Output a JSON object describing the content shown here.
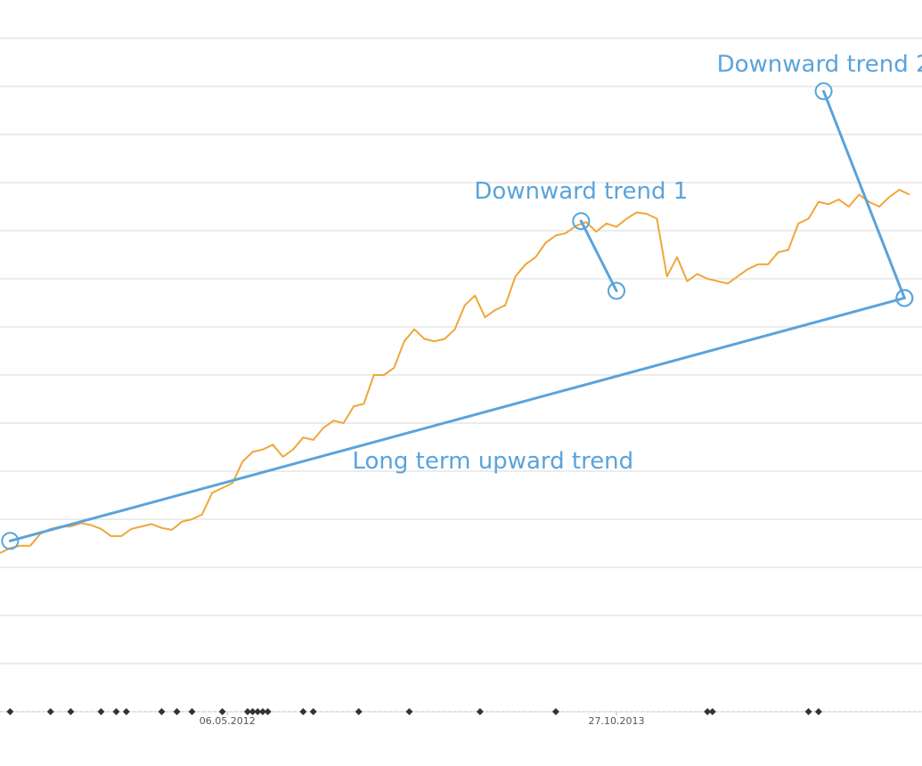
{
  "chart_data": {
    "type": "line",
    "title": "",
    "xlabel": "",
    "ylabel": "",
    "grid": true,
    "legend": "none",
    "x_range": [
      "2011-06-26",
      "2014-12-07"
    ],
    "x_ticks": [
      {
        "date": "2012-05-06",
        "label": "06.05.2012"
      },
      {
        "date": "2013-10-27",
        "label": "27.10.2013"
      }
    ],
    "ylim": [
      0,
      14.5
    ],
    "series": [
      {
        "color": "#f0a63a",
        "points": [
          [
            "2011-06-26",
            3.3
          ],
          [
            "2011-07-10",
            3.4
          ],
          [
            "2011-07-24",
            3.45
          ],
          [
            "2011-08-07",
            3.45
          ],
          [
            "2011-08-21",
            3.7
          ],
          [
            "2011-09-04",
            3.8
          ],
          [
            "2011-09-18",
            3.85
          ],
          [
            "2011-10-02",
            3.85
          ],
          [
            "2011-10-16",
            3.92
          ],
          [
            "2011-10-30",
            3.88
          ],
          [
            "2011-11-13",
            3.8
          ],
          [
            "2011-11-27",
            3.65
          ],
          [
            "2011-12-11",
            3.65
          ],
          [
            "2011-12-25",
            3.8
          ],
          [
            "2012-01-08",
            3.85
          ],
          [
            "2012-01-22",
            3.9
          ],
          [
            "2012-02-05",
            3.82
          ],
          [
            "2012-02-19",
            3.78
          ],
          [
            "2012-03-04",
            3.95
          ],
          [
            "2012-03-18",
            4.0
          ],
          [
            "2012-04-01",
            4.1
          ],
          [
            "2012-04-15",
            4.55
          ],
          [
            "2012-04-29",
            4.65
          ],
          [
            "2012-05-13",
            4.75
          ],
          [
            "2012-05-27",
            5.2
          ],
          [
            "2012-06-10",
            5.4
          ],
          [
            "2012-06-24",
            5.45
          ],
          [
            "2012-07-08",
            5.55
          ],
          [
            "2012-07-22",
            5.3
          ],
          [
            "2012-08-05",
            5.45
          ],
          [
            "2012-08-19",
            5.7
          ],
          [
            "2012-09-02",
            5.65
          ],
          [
            "2012-09-16",
            5.9
          ],
          [
            "2012-09-30",
            6.05
          ],
          [
            "2012-10-14",
            6.0
          ],
          [
            "2012-10-28",
            6.35
          ],
          [
            "2012-11-11",
            6.4
          ],
          [
            "2012-11-25",
            7.0
          ],
          [
            "2012-12-09",
            7.0
          ],
          [
            "2012-12-23",
            7.15
          ],
          [
            "2013-01-06",
            7.7
          ],
          [
            "2013-01-20",
            7.95
          ],
          [
            "2013-02-03",
            7.75
          ],
          [
            "2013-02-17",
            7.7
          ],
          [
            "2013-03-03",
            7.75
          ],
          [
            "2013-03-17",
            7.95
          ],
          [
            "2013-03-31",
            8.45
          ],
          [
            "2013-04-14",
            8.65
          ],
          [
            "2013-04-28",
            8.2
          ],
          [
            "2013-05-12",
            8.35
          ],
          [
            "2013-05-26",
            8.45
          ],
          [
            "2013-06-09",
            9.05
          ],
          [
            "2013-06-23",
            9.3
          ],
          [
            "2013-07-07",
            9.45
          ],
          [
            "2013-07-21",
            9.75
          ],
          [
            "2013-08-04",
            9.9
          ],
          [
            "2013-08-18",
            9.95
          ],
          [
            "2013-09-01",
            10.1
          ],
          [
            "2013-09-15",
            10.18
          ],
          [
            "2013-09-29",
            9.98
          ],
          [
            "2013-10-13",
            10.15
          ],
          [
            "2013-10-27",
            10.08
          ],
          [
            "2013-11-10",
            10.25
          ],
          [
            "2013-11-24",
            10.38
          ],
          [
            "2013-12-08",
            10.35
          ],
          [
            "2013-12-22",
            10.25
          ],
          [
            "2014-01-05",
            9.05
          ],
          [
            "2014-01-19",
            9.45
          ],
          [
            "2014-02-02",
            8.95
          ],
          [
            "2014-02-16",
            9.1
          ],
          [
            "2014-03-02",
            9.0
          ],
          [
            "2014-03-16",
            8.95
          ],
          [
            "2014-03-30",
            8.9
          ],
          [
            "2014-04-13",
            9.05
          ],
          [
            "2014-04-27",
            9.2
          ],
          [
            "2014-05-11",
            9.3
          ],
          [
            "2014-05-25",
            9.3
          ],
          [
            "2014-06-08",
            9.55
          ],
          [
            "2014-06-22",
            9.6
          ],
          [
            "2014-07-06",
            10.15
          ],
          [
            "2014-07-20",
            10.25
          ],
          [
            "2014-08-03",
            10.6
          ],
          [
            "2014-08-17",
            10.55
          ],
          [
            "2014-08-31",
            10.65
          ],
          [
            "2014-09-14",
            10.5
          ],
          [
            "2014-09-28",
            10.75
          ],
          [
            "2014-10-12",
            10.6
          ],
          [
            "2014-10-26",
            10.5
          ],
          [
            "2014-11-09",
            10.7
          ],
          [
            "2014-11-23",
            10.85
          ],
          [
            "2014-12-07",
            10.75
          ]
        ]
      }
    ],
    "trend_lines": [
      {
        "label": "Long term upward trend",
        "from": [
          "2011-07-10",
          3.55
        ],
        "to": [
          "2014-11-30",
          8.6
        ]
      },
      {
        "label": "Downward trend 1",
        "from": [
          "2013-09-08",
          10.2
        ],
        "to": [
          "2013-10-27",
          8.75
        ]
      },
      {
        "label": "Downward trend 2",
        "from": [
          "2014-08-10",
          12.9
        ],
        "to": [
          "2014-11-30",
          8.6
        ]
      }
    ],
    "event_markers": [
      "2011-07-10",
      "2011-09-04",
      "2011-10-02",
      "2011-11-13",
      "2011-12-04",
      "2011-12-18",
      "2012-02-05",
      "2012-02-26",
      "2012-03-18",
      "2012-04-29",
      "2012-06-03",
      "2012-06-10",
      "2012-06-17",
      "2012-06-24",
      "2012-07-01",
      "2012-08-19",
      "2012-09-02",
      "2012-11-04",
      "2013-01-13",
      "2013-04-21",
      "2013-08-04",
      "2014-03-02",
      "2014-03-09",
      "2014-07-20",
      "2014-08-03"
    ]
  }
}
